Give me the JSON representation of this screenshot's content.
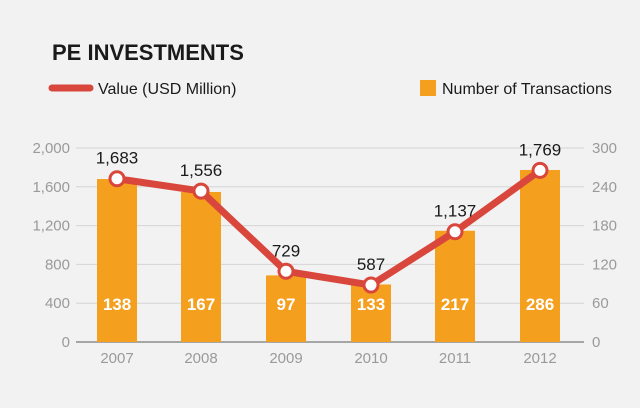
{
  "chart_data": {
    "type": "bar+line",
    "title": "PE INVESTMENTS",
    "categories": [
      "2007",
      "2008",
      "2009",
      "2010",
      "2011",
      "2012"
    ],
    "line_series": {
      "name": "Value (USD Million)",
      "color": "#d9473c",
      "values": [
        1683,
        1556,
        729,
        587,
        1137,
        1769
      ],
      "labels": [
        "1,683",
        "1,556",
        "729",
        "587",
        "1,137",
        "1,769"
      ]
    },
    "bar_series": {
      "name": "Number of Transactions",
      "color": "#f59f1f",
      "values": [
        138,
        167,
        97,
        133,
        217,
        286
      ],
      "heights": [
        252,
        232,
        103,
        89,
        172,
        266
      ]
    },
    "y_left": {
      "ylim": [
        0,
        2000
      ],
      "ticks": [
        "0",
        "400",
        "800",
        "1,200",
        "1,600",
        "2,000"
      ]
    },
    "y_right": {
      "ylim": [
        0,
        300
      ],
      "ticks": [
        "0",
        "60",
        "120",
        "180",
        "240",
        "300"
      ]
    },
    "legend_position": "top",
    "grid": true
  }
}
